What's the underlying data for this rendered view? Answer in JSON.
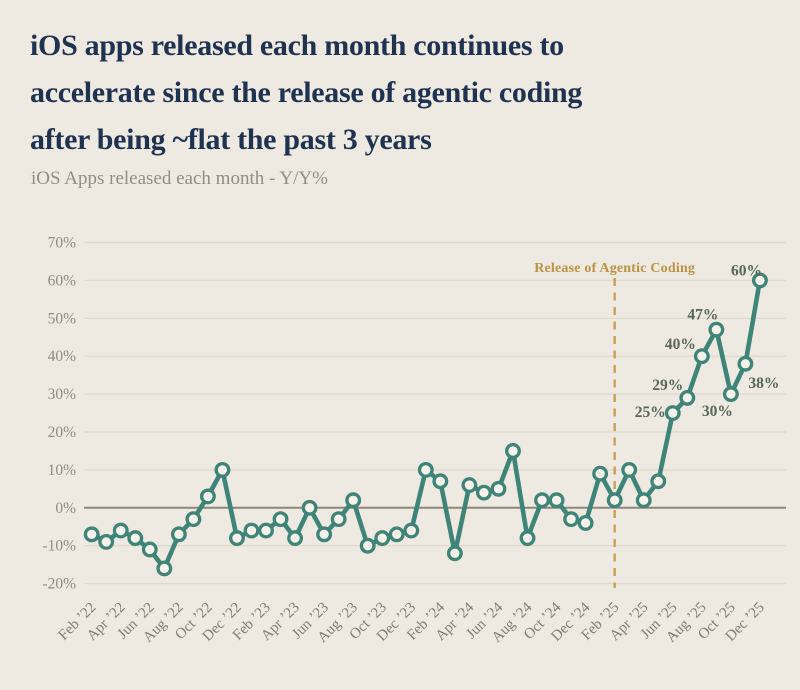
{
  "header": {
    "title_lines": [
      "iOS apps released each month continues to",
      "accelerate since the release of agentic coding",
      "after being ~flat the past 3 years"
    ],
    "subtitle": "iOS Apps released each month - Y/Y%"
  },
  "colors": {
    "background": "#EFEAE1",
    "title_text": "#1E3252",
    "subtitle_text": "#908D85",
    "line": "#3F8478",
    "marker_fill": "#F7F3EA",
    "gridline": "#E0DACC",
    "zero_line": "#8D8679",
    "y_axis_label": "#8F8C82",
    "x_axis_label": "#7F7C73",
    "annotation_text": "#BE9245",
    "annotation_line": "#C9A054",
    "point_label": "#566759"
  },
  "chart_data": {
    "type": "line",
    "title": "iOS Apps released each month - Y/Y%",
    "x": [
      "Feb ’22",
      "Mar ’22",
      "Apr ’22",
      "May ’22",
      "Jun ’22",
      "Jul ’22",
      "Aug ’22",
      "Sep ’22",
      "Oct ’22",
      "Nov ’22",
      "Dec ’22",
      "Jan ’23",
      "Feb ’23",
      "Mar ’23",
      "Apr ’23",
      "May ’23",
      "Jun ’23",
      "Jul ’23",
      "Aug ’23",
      "Sep ’23",
      "Oct ’23",
      "Nov ’23",
      "Dec ’23",
      "Jan ’24",
      "Feb ’24",
      "Mar ’24",
      "Apr ’24",
      "May ’24",
      "Jun ’24",
      "Jul ’24",
      "Aug ’24",
      "Sep ’24",
      "Oct ’24",
      "Nov ’24",
      "Dec ’24",
      "Jan ’25",
      "Feb ’25",
      "Mar ’25",
      "Apr ’25",
      "May ’25",
      "Jun ’25",
      "Jul ’25",
      "Aug ’25",
      "Sep ’25",
      "Oct ’25",
      "Nov ’25",
      "Dec ’25"
    ],
    "values": [
      -7,
      -9,
      -6,
      -8,
      -11,
      -16,
      -7,
      -3,
      3,
      10,
      -8,
      -6,
      -6,
      -3,
      -8,
      0,
      -7,
      -3,
      2,
      -10,
      -8,
      -7,
      -6,
      10,
      7,
      -12,
      6,
      4,
      5,
      15,
      -8,
      2,
      2,
      -3,
      -4,
      9,
      2,
      10,
      2,
      7,
      25,
      29,
      40,
      47,
      30,
      38,
      60
    ],
    "unit": "%",
    "ylim": [
      -20,
      70
    ],
    "yticks": [
      70,
      60,
      50,
      40,
      30,
      20,
      10,
      0,
      -10,
      -20
    ],
    "ytick_labels": [
      "70%",
      "60%",
      "50%",
      "40%",
      "30%",
      "20%",
      "10%",
      "0%",
      "-10%",
      "-20%"
    ],
    "x_tick_every": 2,
    "grid": true,
    "legend": "none",
    "annotation": {
      "text": "Release of Agentic Coding",
      "at_x": "Feb ’25"
    },
    "labeled_points": [
      {
        "x": "Jun ’25",
        "value": 25,
        "label": "25%"
      },
      {
        "x": "Jul ’25",
        "value": 29,
        "label": "29%"
      },
      {
        "x": "Aug ’25",
        "value": 40,
        "label": "40%"
      },
      {
        "x": "Sep ’25",
        "value": 47,
        "label": "47%"
      },
      {
        "x": "Oct ’25",
        "value": 30,
        "label": "30%"
      },
      {
        "x": "Nov ’25",
        "value": 38,
        "label": "38%"
      },
      {
        "x": "Dec ’25",
        "value": 60,
        "label": "60%"
      }
    ]
  }
}
